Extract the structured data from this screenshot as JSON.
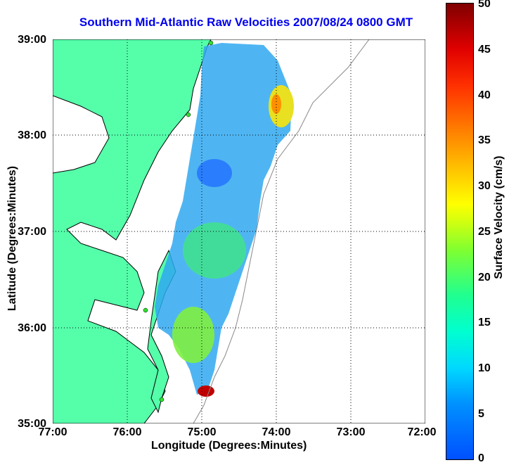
{
  "title": "Southern Mid-Atlantic Raw Velocities 2007/08/24 0800 GMT",
  "xaxis": {
    "label": "Longitude (Degrees:Minutes)",
    "ticks": [
      "77:00",
      "76:00",
      "75:00",
      "74:00",
      "73:00",
      "72:00"
    ]
  },
  "yaxis": {
    "label": "Latitude (Degrees:Minutes)",
    "ticks": [
      "39:00",
      "38:00",
      "37:00",
      "36:00",
      "35:00"
    ]
  },
  "colorbar": {
    "label": "Surface Velocity (cm/s)",
    "ticks": [
      "50",
      "45",
      "40",
      "35",
      "30",
      "25",
      "20",
      "15",
      "10",
      "5",
      "0"
    ],
    "range": [
      0,
      50
    ]
  },
  "colors": {
    "land": "#55ffaa",
    "water": "#ffffff",
    "title": "#0000ee",
    "grid": "#000000"
  },
  "map": {
    "lon_range": [
      -77,
      -72
    ],
    "lat_range": [
      35,
      39
    ],
    "grid": true
  }
}
